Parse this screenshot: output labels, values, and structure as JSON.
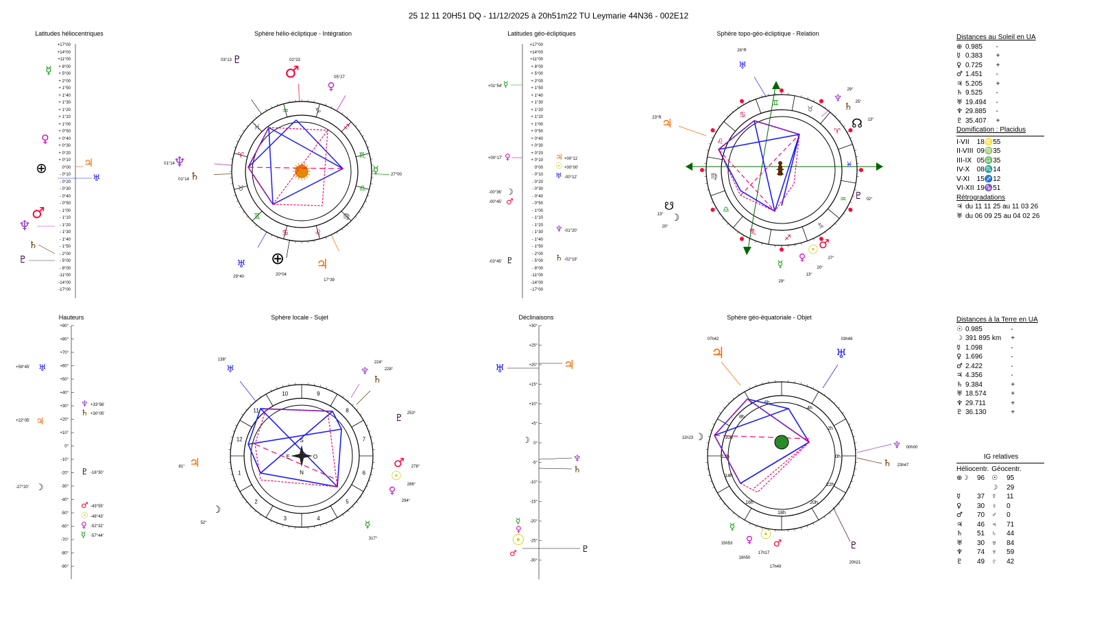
{
  "header": {
    "title": "25 12 11 20H51 DQ   -  11/12/2025 à 20h51m22 TU  Leymarie  44N36 - 002E12"
  },
  "panels": {
    "latitudes_helio": {
      "title": "Latitudes héliocentriques",
      "scale": [
        "+17°00",
        "+14°00",
        "+11°00",
        "+ 8°00",
        "+ 5°00",
        "+ 2°00",
        "+ 1°50",
        "+ 1°40",
        "+ 1°30",
        "+ 1°20",
        "+ 1°10",
        "+ 1°00",
        "+ 0°50",
        "+ 0°40",
        "+ 0°30",
        "+ 0°20",
        "+ 0°10",
        "0°00",
        "- 0°10",
        "- 0°20",
        "- 0°30",
        "- 0°40",
        "- 0°50",
        "- 1°00",
        "- 1°10",
        "- 1°20",
        "- 1°30",
        "- 1°40",
        "- 1°50",
        "- 2°00",
        "- 5°00",
        "- 8°00",
        "-11°00",
        "-14°00",
        "-17°00"
      ]
    },
    "sphere_helio": {
      "title": "Sphère hélio-écliptique - Intégration",
      "labels": [
        "03°13",
        "02°23",
        "05°27",
        "01°14",
        "01°14",
        "27°00",
        "29°40",
        "20°04",
        "17°39"
      ]
    },
    "latitudes_geo": {
      "title": "Latitudes géo-écliptiques",
      "labels": [
        "+01°54'",
        "+00°17'",
        "+00°11'",
        "+00°00'",
        "-00°12'",
        "-00°36'",
        "-00°45'",
        "-01°20'",
        "-03°45'",
        "-02°19'"
      ]
    },
    "sphere_topo": {
      "title": "Sphère topo-géo-écliptique - Relation",
      "labels": [
        "26°R",
        "29°",
        "25°",
        "13°",
        "23°R",
        "02°",
        "13°",
        "20°",
        "27°",
        "20°",
        "13°",
        "29°"
      ]
    },
    "hauteurs": {
      "title": "Hauteurs",
      "scale": [
        "+90°",
        "+80°",
        "+70°",
        "+60°",
        "+50°",
        "+40°",
        "+30°",
        "+20°",
        "+10°",
        "0°",
        "-10°",
        "-20°",
        "-30°",
        "-40°",
        "-50°",
        "-60°",
        "-70°",
        "-80°",
        "-90°"
      ],
      "labels": [
        "+59°45'",
        "+33°56'",
        "+30°05'",
        "+22°05'",
        "-16°30'",
        "-27°20'",
        "-43°55'",
        "-48°43'",
        "-52°32'",
        "-57°44'"
      ]
    },
    "sphere_locale": {
      "title": "Sphère locale - Sujet",
      "houses": [
        "10",
        "9",
        "11",
        "8",
        "12",
        "7",
        "1",
        "6",
        "2",
        "5",
        "3",
        "4"
      ],
      "compass": [
        "S",
        "E",
        "O",
        "N"
      ],
      "labels": [
        "138°",
        "224°",
        "228°",
        "253°",
        "81°",
        "278°",
        "286°",
        "294°",
        "52°",
        "317°"
      ]
    },
    "declinaisons": {
      "title": "Déclinaisons",
      "scale": [
        "+30°",
        "+25°",
        "+20°",
        "+15°",
        "+10°",
        "+5°",
        "0°",
        "-5°",
        "-10°",
        "-15°",
        "-20°",
        "-25°",
        "-30°"
      ]
    },
    "sphere_equat": {
      "title": "Sphère géo-équatoriale - Objet",
      "hours": [
        "6h",
        "4h",
        "8h",
        "2h",
        "10h",
        "12h",
        "0h",
        "14h",
        "22h",
        "16h",
        "20h",
        "18h"
      ],
      "labels": [
        "07h42",
        "03h48",
        "11h23",
        "00h00",
        "23h47",
        "15h53",
        "16h50",
        "17h17",
        "17h49",
        "20h21"
      ]
    }
  },
  "right": {
    "sun_dist": {
      "heading": "Distances au Soleil en UA",
      "rows": [
        [
          "⊕",
          "0.985",
          "-"
        ],
        [
          "☿",
          "0.383",
          "+"
        ],
        [
          "♀",
          "0.725",
          "+"
        ],
        [
          "♂",
          "1.451",
          "-"
        ],
        [
          "♃",
          "5.205",
          "+"
        ],
        [
          "♄",
          "9.525",
          "-"
        ],
        [
          "♅",
          "19.494",
          "-"
        ],
        [
          "♆",
          "29.885",
          "-"
        ],
        [
          "♇",
          "35.407",
          "+"
        ]
      ]
    },
    "domification": {
      "heading": "Domification : Placidus",
      "rows": [
        [
          "I-VII",
          "18♌55"
        ],
        [
          "II-VIII",
          "09♍35"
        ],
        [
          "III-IX",
          "05♎35"
        ],
        [
          "IV-X",
          "08♏14"
        ],
        [
          "V-XI",
          "15♐12"
        ],
        [
          "VI-XII",
          "19♑51"
        ]
      ]
    },
    "retro": {
      "heading": "Rétrogradations",
      "rows": [
        [
          "♃",
          "du 11 11 25 au 11 03 26"
        ],
        [
          "♅",
          "du 06 09 25 au 04 02 26"
        ]
      ]
    },
    "earth_dist": {
      "heading": "Distances à la Terre en UA",
      "rows": [
        [
          "☉",
          "0.985",
          "-"
        ],
        [
          "☽",
          "391 895 km",
          "+"
        ],
        [
          "☿",
          "1.098",
          "-"
        ],
        [
          "♀",
          "1.696",
          "-"
        ],
        [
          "♂",
          "2.422",
          "-"
        ],
        [
          "♃",
          "4.356",
          "-"
        ],
        [
          "♄",
          "9.384",
          "+"
        ],
        [
          "♅",
          "18.574",
          "+"
        ],
        [
          "♆",
          "29.711",
          "+"
        ],
        [
          "♇",
          "36.130",
          "+"
        ]
      ]
    },
    "ig": {
      "heading": "IG relatives",
      "col1": "Héliocentr.",
      "col2": "Géocentr.",
      "rows": [
        [
          "⊕☽",
          "96",
          "☉",
          "95"
        ],
        [
          "",
          "",
          "☽",
          "29"
        ],
        [
          "☿",
          "37",
          "☿",
          "11"
        ],
        [
          "♀",
          "30",
          "♀",
          "0"
        ],
        [
          "♂",
          "70",
          "♂",
          "0"
        ],
        [
          "♃",
          "46",
          "♃",
          "71"
        ],
        [
          "♄",
          "51",
          "♄",
          "44"
        ],
        [
          "♅",
          "30",
          "♅",
          "84"
        ],
        [
          "♆",
          "74",
          "♆",
          "59"
        ],
        [
          "♇",
          "49",
          "♇",
          "42"
        ]
      ]
    }
  },
  "colors": {
    "blue": "#1a1aff",
    "red": "#ff0033",
    "green": "#009900",
    "orange": "#ff6600",
    "purple": "#9933cc",
    "gold": "#cccc00",
    "magenta": "#ff33cc",
    "brown": "#663300"
  }
}
